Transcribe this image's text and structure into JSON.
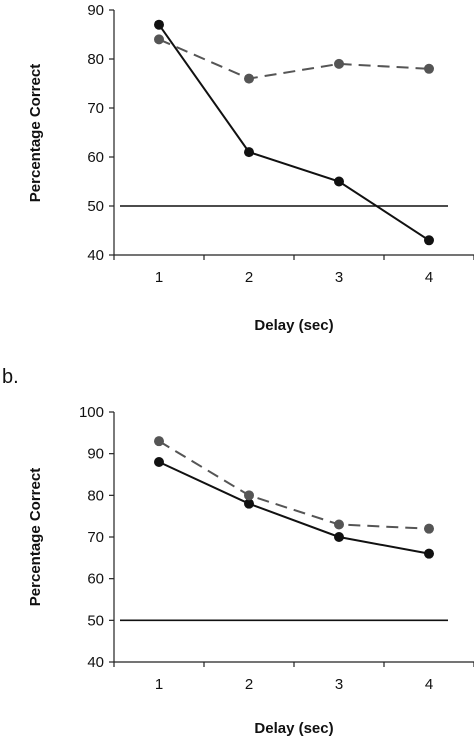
{
  "chart_data": [
    {
      "type": "line",
      "panel_label": "",
      "x": [
        1,
        2,
        3,
        4
      ],
      "xlabel": "Delay (sec)",
      "ylabel": "Percentage Correct",
      "xlim": [
        0.5,
        4.5
      ],
      "ylim": [
        40,
        90
      ],
      "yticks": [
        40,
        50,
        60,
        70,
        80,
        90
      ],
      "xticks": [
        1,
        2,
        3,
        4
      ],
      "grid": false,
      "legend": "none",
      "series": [
        {
          "values": [
            87,
            61,
            55,
            43
          ],
          "style": "solid",
          "color": "#111111"
        },
        {
          "values": [
            84,
            76,
            79,
            78
          ],
          "style": "dashed",
          "color": "#555555"
        }
      ],
      "reference_line": {
        "y": 50,
        "color": "#111111"
      }
    },
    {
      "type": "line",
      "panel_label": "b.",
      "x": [
        1,
        2,
        3,
        4
      ],
      "xlabel": "Delay (sec)",
      "ylabel": "Percentage Correct",
      "xlim": [
        0.5,
        4.5
      ],
      "ylim": [
        40,
        100
      ],
      "yticks": [
        40,
        50,
        60,
        70,
        80,
        90,
        100
      ],
      "xticks": [
        1,
        2,
        3,
        4
      ],
      "grid": false,
      "legend": "none",
      "series": [
        {
          "values": [
            88,
            78,
            70,
            66
          ],
          "style": "solid",
          "color": "#111111"
        },
        {
          "values": [
            93,
            80,
            73,
            72
          ],
          "style": "dashed",
          "color": "#555555"
        }
      ],
      "reference_line": {
        "y": 50,
        "color": "#111111"
      }
    }
  ]
}
